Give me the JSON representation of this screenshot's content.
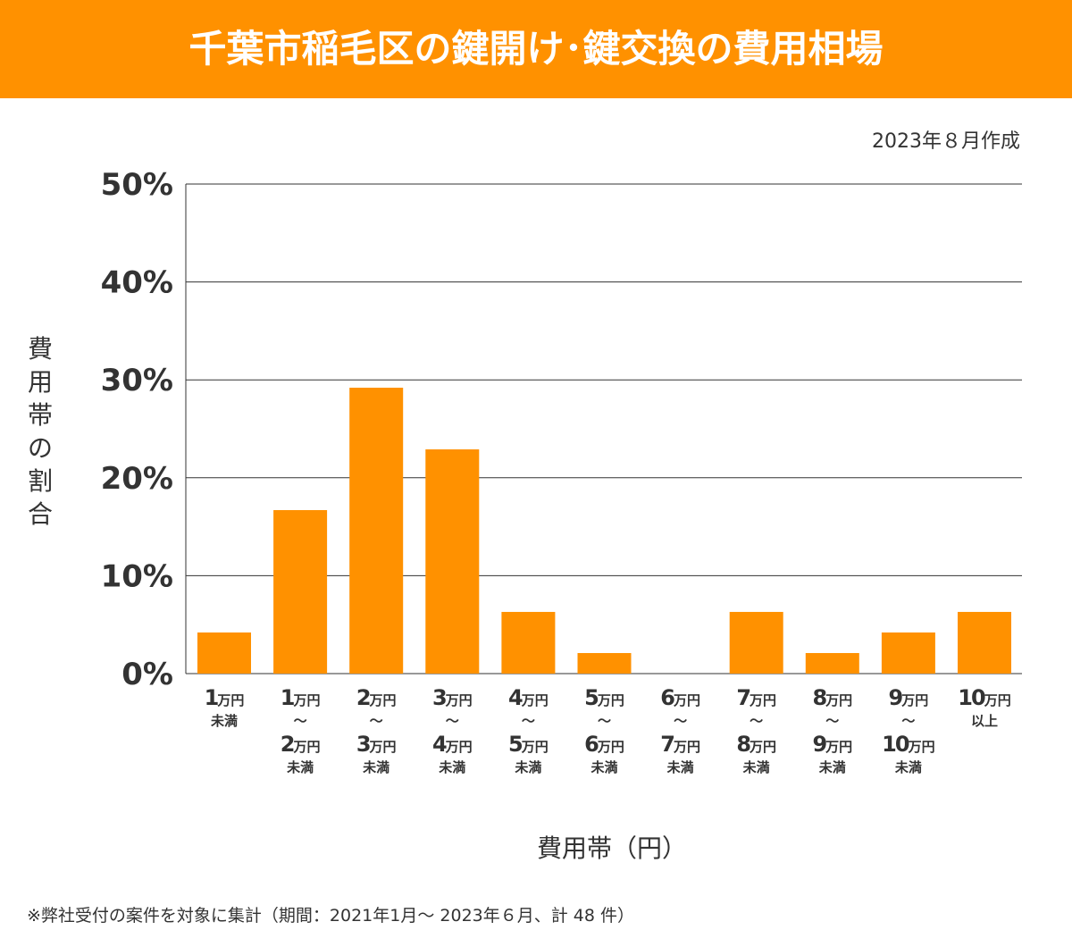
{
  "title": "千葉市稲毛区の鍵開け･鍵交換の費用相場",
  "date_note": "2023年８月作成",
  "footnote": "※弊社受付の案件を対象に集計（期間：2021年1月～ 2023年６月、計 48 件）",
  "chart_data": {
    "type": "bar",
    "title": "千葉市稲毛区の鍵開け･鍵交換の費用相場",
    "xlabel": "費用帯（円）",
    "ylabel": "費用帯の割合",
    "ylim": [
      0,
      50
    ],
    "yticks": [
      "0%",
      "10%",
      "20%",
      "30%",
      "40%",
      "50%"
    ],
    "grid": true,
    "color": "#ff9100",
    "categories": [
      [
        "1万円",
        "未満"
      ],
      [
        "1万円",
        "〜",
        "2万円",
        "未満"
      ],
      [
        "2万円",
        "〜",
        "3万円",
        "未満"
      ],
      [
        "3万円",
        "〜",
        "4万円",
        "未満"
      ],
      [
        "4万円",
        "〜",
        "5万円",
        "未満"
      ],
      [
        "5万円",
        "〜",
        "6万円",
        "未満"
      ],
      [
        "6万円",
        "〜",
        "7万円",
        "未満"
      ],
      [
        "7万円",
        "〜",
        "8万円",
        "未満"
      ],
      [
        "8万円",
        "〜",
        "9万円",
        "未満"
      ],
      [
        "9万円",
        "〜",
        "10万円",
        "未満"
      ],
      [
        "10万円",
        "以上"
      ]
    ],
    "values": [
      4.2,
      16.7,
      29.2,
      22.9,
      6.3,
      2.1,
      0,
      6.3,
      2.1,
      4.2,
      6.3
    ]
  }
}
